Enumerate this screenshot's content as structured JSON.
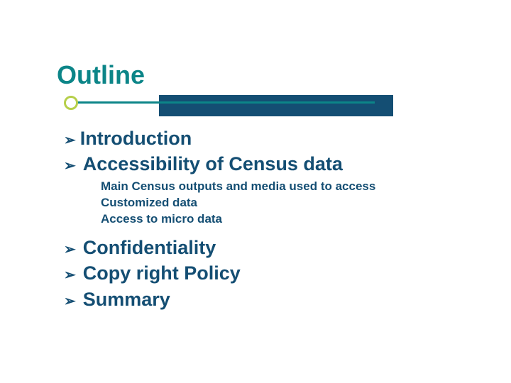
{
  "colors": {
    "title": "#0c8588",
    "dot_border": "#b6cf4a",
    "underline": "#0c8588",
    "banner": "#144e73",
    "text_main": "#144e73",
    "text_sub": "#144e73"
  },
  "title": "Outline",
  "bullet_glyph": "➢",
  "items": [
    {
      "label": "Introduction",
      "space": "narrow"
    },
    {
      "label": "Accessibility of Census data",
      "space": "wide",
      "subs": [
        "Main Census outputs and media used to access",
        "Customized data",
        "Access to micro data"
      ]
    },
    {
      "label": "Confidentiality",
      "space": "wide"
    },
    {
      "label": "Copy right Policy",
      "space": "wide"
    },
    {
      "label": "Summary",
      "space": "wide"
    }
  ],
  "typography": {
    "title_fontsize": 36,
    "main_fontsize": 27,
    "sub_fontsize": 17
  }
}
